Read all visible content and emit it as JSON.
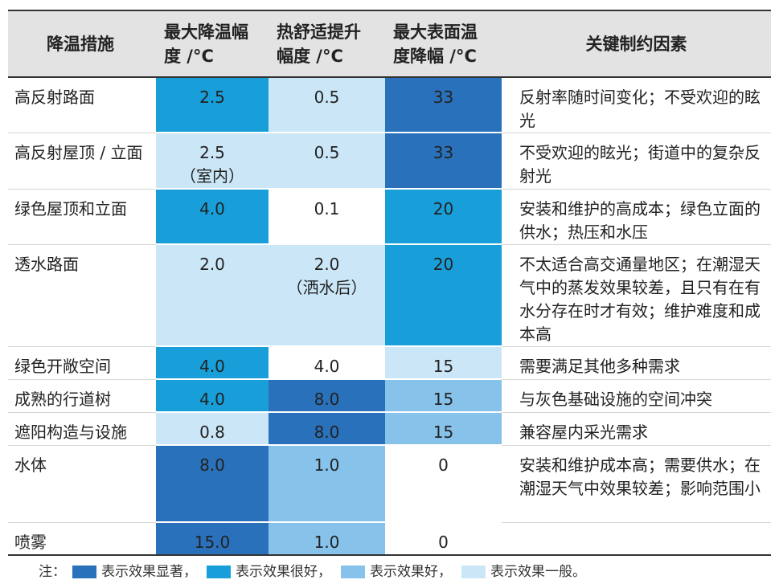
{
  "colors": {
    "significant": "#2a71bb",
    "very_good": "#189fd9",
    "good": "#86c2ea",
    "general": "#cbe7f7"
  },
  "header": {
    "col1": "降温措施",
    "col2_line1": "最大降温幅",
    "col2_line2": "度 /°C",
    "col3_line1": "热舒适提升",
    "col3_line2": "幅度 /°C",
    "col4_line1": "最大表面温",
    "col4_line2": "度降幅 /°C",
    "col5": "关键制约因素"
  },
  "rows": [
    {
      "name": "高反射路面",
      "cool": "2.5",
      "cool_note": "",
      "comfort": "0.5",
      "comfort_note": "",
      "surface": "33",
      "factor": "反射率随时间变化；不受欢迎的眩光",
      "lv": [
        "very_good",
        "general",
        "significant"
      ]
    },
    {
      "name": "高反射屋顶 / 立面",
      "cool": "2.5",
      "cool_note": "（室内）",
      "comfort": "0.5",
      "comfort_note": "",
      "surface": "33",
      "factor": "不受欢迎的眩光；街道中的复杂反射光",
      "lv": [
        "general",
        "general",
        "significant"
      ]
    },
    {
      "name": "绿色屋顶和立面",
      "cool": "4.0",
      "cool_note": "",
      "comfort": "0.1",
      "comfort_note": "",
      "surface": "20",
      "factor": "安装和维护的高成本；绿色立面的供水；热压和水压",
      "lv": [
        "very_good",
        "none",
        "very_good"
      ]
    },
    {
      "name": "透水路面",
      "cool": "2.0",
      "cool_note": "",
      "comfort": "2.0",
      "comfort_note": "（洒水后）",
      "surface": "20",
      "factor": "不太适合高交通量地区；在潮湿天气中的蒸发效果较差，且只有在有水分存在时才有效；维护难度和成本高",
      "lv": [
        "general",
        "general",
        "very_good"
      ]
    },
    {
      "name": "绿色开敞空间",
      "cool": "4.0",
      "cool_note": "",
      "comfort": "4.0",
      "comfort_note": "",
      "surface": "15",
      "factor": "需要满足其他多种需求",
      "lv": [
        "very_good",
        "none",
        "general"
      ]
    },
    {
      "name": "成熟的行道树",
      "cool": "4.0",
      "cool_note": "",
      "comfort": "8.0",
      "comfort_note": "",
      "surface": "15",
      "factor": "与灰色基础设施的空间冲突",
      "lv": [
        "very_good",
        "significant",
        "good"
      ]
    },
    {
      "name": "遮阳构造与设施",
      "cool": "0.8",
      "cool_note": "",
      "comfort": "8.0",
      "comfort_note": "",
      "surface": "15",
      "factor": "兼容屋内采光需求",
      "lv": [
        "general",
        "significant",
        "good"
      ]
    },
    {
      "name": "水体",
      "cool": "8.0",
      "cool_note": "",
      "comfort": "1.0",
      "comfort_note": "",
      "surface": "0",
      "factor": "安装和维护成本高；需要供水；在潮湿天气中效果较差；影响范围小",
      "lv": [
        "significant",
        "good",
        "none"
      ]
    },
    {
      "name": "喷雾",
      "cool": "15.0",
      "cool_note": "",
      "comfort": "1.0",
      "comfort_note": "",
      "surface": "0",
      "factor": "",
      "lv": [
        "significant",
        "good",
        "none"
      ]
    }
  ],
  "legend": {
    "prefix": "注：",
    "significant": "表示效果显著，",
    "very_good": "表示效果很好，",
    "good": "表示效果好，",
    "general": "表示效果一般。"
  }
}
